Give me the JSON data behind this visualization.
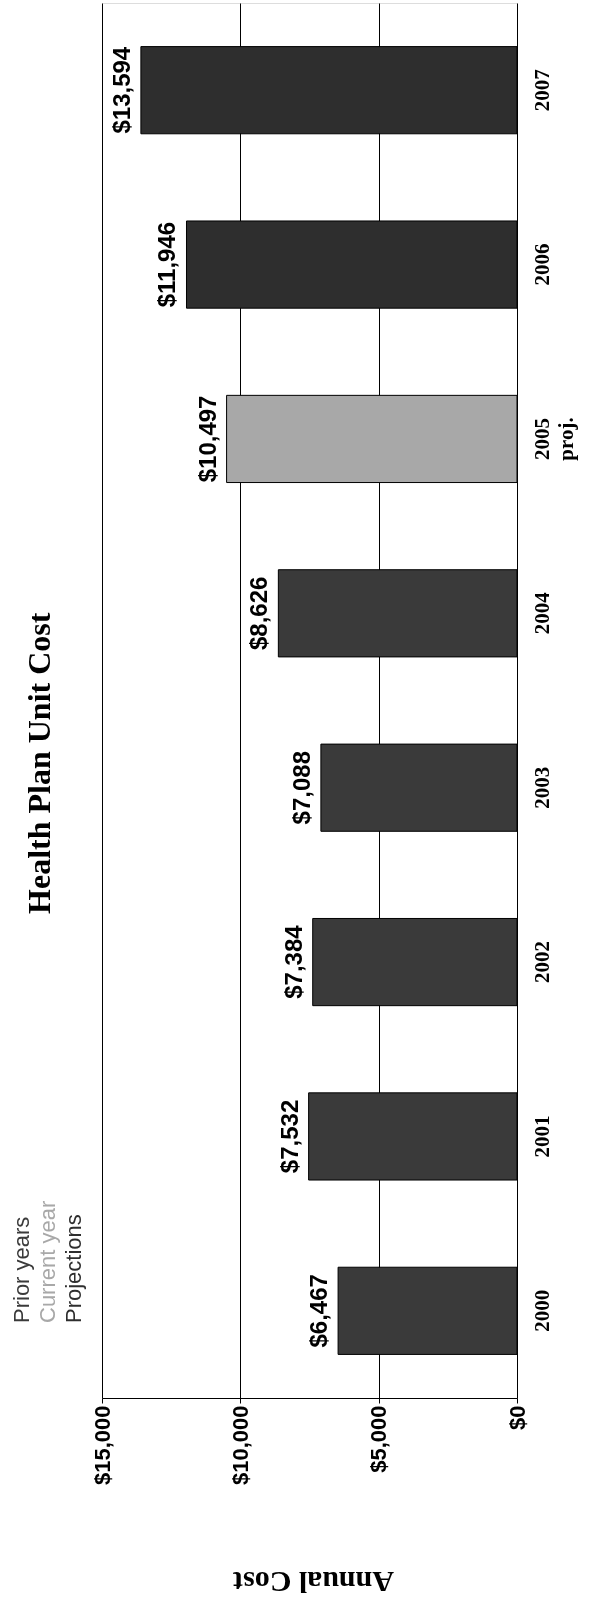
{
  "chart_data": {
    "type": "bar",
    "orientation": "horizontal",
    "title": "Health Plan Unit Cost",
    "xlabel": "Annual Cost",
    "categories": [
      "2007",
      "2006",
      "2005\nproj.",
      "2004",
      "2003",
      "2002",
      "2001",
      "2000"
    ],
    "series": [
      {
        "name": "Prior years",
        "color": "#3a3a3a",
        "values": [
          null,
          null,
          null,
          8626,
          7088,
          7384,
          7532,
          6467
        ],
        "value_labels": [
          null,
          null,
          null,
          "$8,626",
          "$7,088",
          "$7,384",
          "$7,532",
          "$6,467"
        ]
      },
      {
        "name": "Current year",
        "color": "#a8a8a8",
        "values": [
          null,
          null,
          10497,
          null,
          null,
          null,
          null,
          null
        ],
        "value_labels": [
          null,
          null,
          "$10,497",
          null,
          null,
          null,
          null,
          null
        ]
      },
      {
        "name": "Projections",
        "color": "#2e2e2e",
        "values": [
          13594,
          11946,
          null,
          null,
          null,
          null,
          null,
          null
        ],
        "value_labels": [
          "$13,594",
          "$11,946",
          null,
          null,
          null,
          null,
          null,
          null
        ]
      }
    ],
    "xlim": [
      15000,
      0
    ],
    "xticks": [
      {
        "value": 15000,
        "label": "$15,000"
      },
      {
        "value": 10000,
        "label": "$10,000"
      },
      {
        "value": 5000,
        "label": "$5,000"
      },
      {
        "value": 0,
        "label": "$0"
      }
    ],
    "grid": "x",
    "legend": "bottom left"
  }
}
